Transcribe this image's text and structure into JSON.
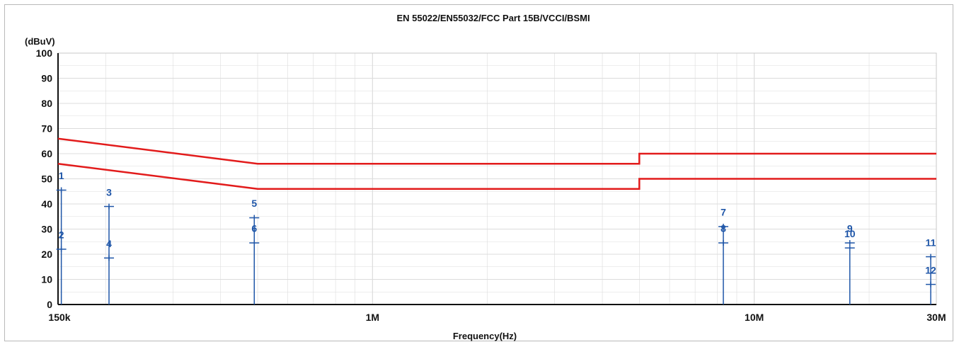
{
  "chart_data": {
    "type": "line",
    "title": "EN 55022/EN55032/FCC Part 15B/VCCI/BSMI",
    "ylabel": "(dBuV)",
    "xlabel": "Frequency(Hz)",
    "xscale": "log",
    "xlim": [
      150000,
      30000000
    ],
    "ylim": [
      0,
      100
    ],
    "yticks": [
      "0",
      "10",
      "20",
      "30",
      "40",
      "50",
      "60",
      "70",
      "80",
      "90",
      "100"
    ],
    "xticks": [
      {
        "value": 150000,
        "label": "150k"
      },
      {
        "value": 1000000,
        "label": "1M"
      },
      {
        "value": 10000000,
        "label": "10M"
      },
      {
        "value": 30000000,
        "label": "30M"
      }
    ],
    "grid": true,
    "limit_lines": [
      {
        "points": [
          [
            150000,
            66
          ],
          [
            500000,
            56
          ],
          [
            5000000,
            56
          ],
          [
            5000000,
            60
          ],
          [
            30000000,
            60
          ]
        ],
        "color": "#e21b1b"
      },
      {
        "points": [
          [
            150000,
            56
          ],
          [
            500000,
            46
          ],
          [
            5000000,
            46
          ],
          [
            5000000,
            50
          ],
          [
            30000000,
            50
          ]
        ],
        "color": "#e21b1b"
      }
    ],
    "markers": [
      {
        "label": "1",
        "x": 153000,
        "y": 45.5,
        "label_y": 51.5
      },
      {
        "label": "2",
        "x": 153000,
        "y": 22.0,
        "label_y": 28.0
      },
      {
        "label": "3",
        "x": 204000,
        "y": 39.0,
        "label_y": 45.0
      },
      {
        "label": "4",
        "x": 204000,
        "y": 18.5,
        "label_y": 24.5
      },
      {
        "label": "5",
        "x": 490000,
        "y": 34.5,
        "label_y": 40.5
      },
      {
        "label": "6",
        "x": 490000,
        "y": 24.5,
        "label_y": 30.5
      },
      {
        "label": "7",
        "x": 8300000,
        "y": 31.0,
        "label_y": 37.0
      },
      {
        "label": "8",
        "x": 8300000,
        "y": 24.5,
        "label_y": 30.5
      },
      {
        "label": "9",
        "x": 17800000,
        "y": 24.5,
        "label_y": 30.5
      },
      {
        "label": "10",
        "x": 17800000,
        "y": 22.5,
        "label_y": 28.5
      },
      {
        "label": "11",
        "x": 29000000,
        "y": 19.0,
        "label_y": 25.0
      },
      {
        "label": "12",
        "x": 29000000,
        "y": 8.0,
        "label_y": 14.0
      }
    ],
    "colors": {
      "limit": "#e21b1b",
      "marker": "#1f56a8",
      "grid": "#dcdcdc",
      "axis": "#111111"
    }
  }
}
